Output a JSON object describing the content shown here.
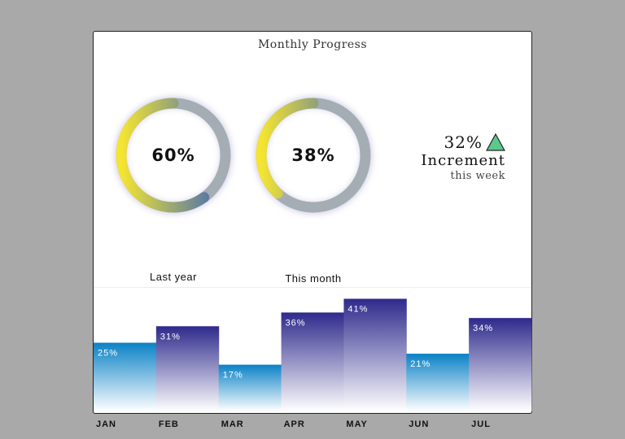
{
  "header": {
    "title": "Monthly Progress"
  },
  "gauges": [
    {
      "percent": 60,
      "display": "60%",
      "label": "Last year"
    },
    {
      "percent": 38,
      "display": "38%",
      "label": "This month"
    }
  ],
  "increment": {
    "value": "32%",
    "word": "Increment",
    "period": "this week",
    "arrow_color": "#5dc88a"
  },
  "colors": {
    "ring_track": "#a4adb4",
    "gauge_start": "#f5e531",
    "gauge_end": "#3c66b8",
    "bar_high_top": "#2e2a8c",
    "bar_low_top": "#0a82c6"
  },
  "chart_data": {
    "type": "bar",
    "categories": [
      "JAN",
      "FEB",
      "MAR",
      "APR",
      "MAY",
      "JUN",
      "JUL"
    ],
    "values": [
      25,
      31,
      17,
      36,
      41,
      21,
      34
    ],
    "data_labels": [
      "25%",
      "31%",
      "17%",
      "36%",
      "41%",
      "21%",
      "34%"
    ],
    "ylim": [
      0,
      45
    ],
    "grid": false,
    "title": "",
    "xlabel": "",
    "ylabel": ""
  }
}
